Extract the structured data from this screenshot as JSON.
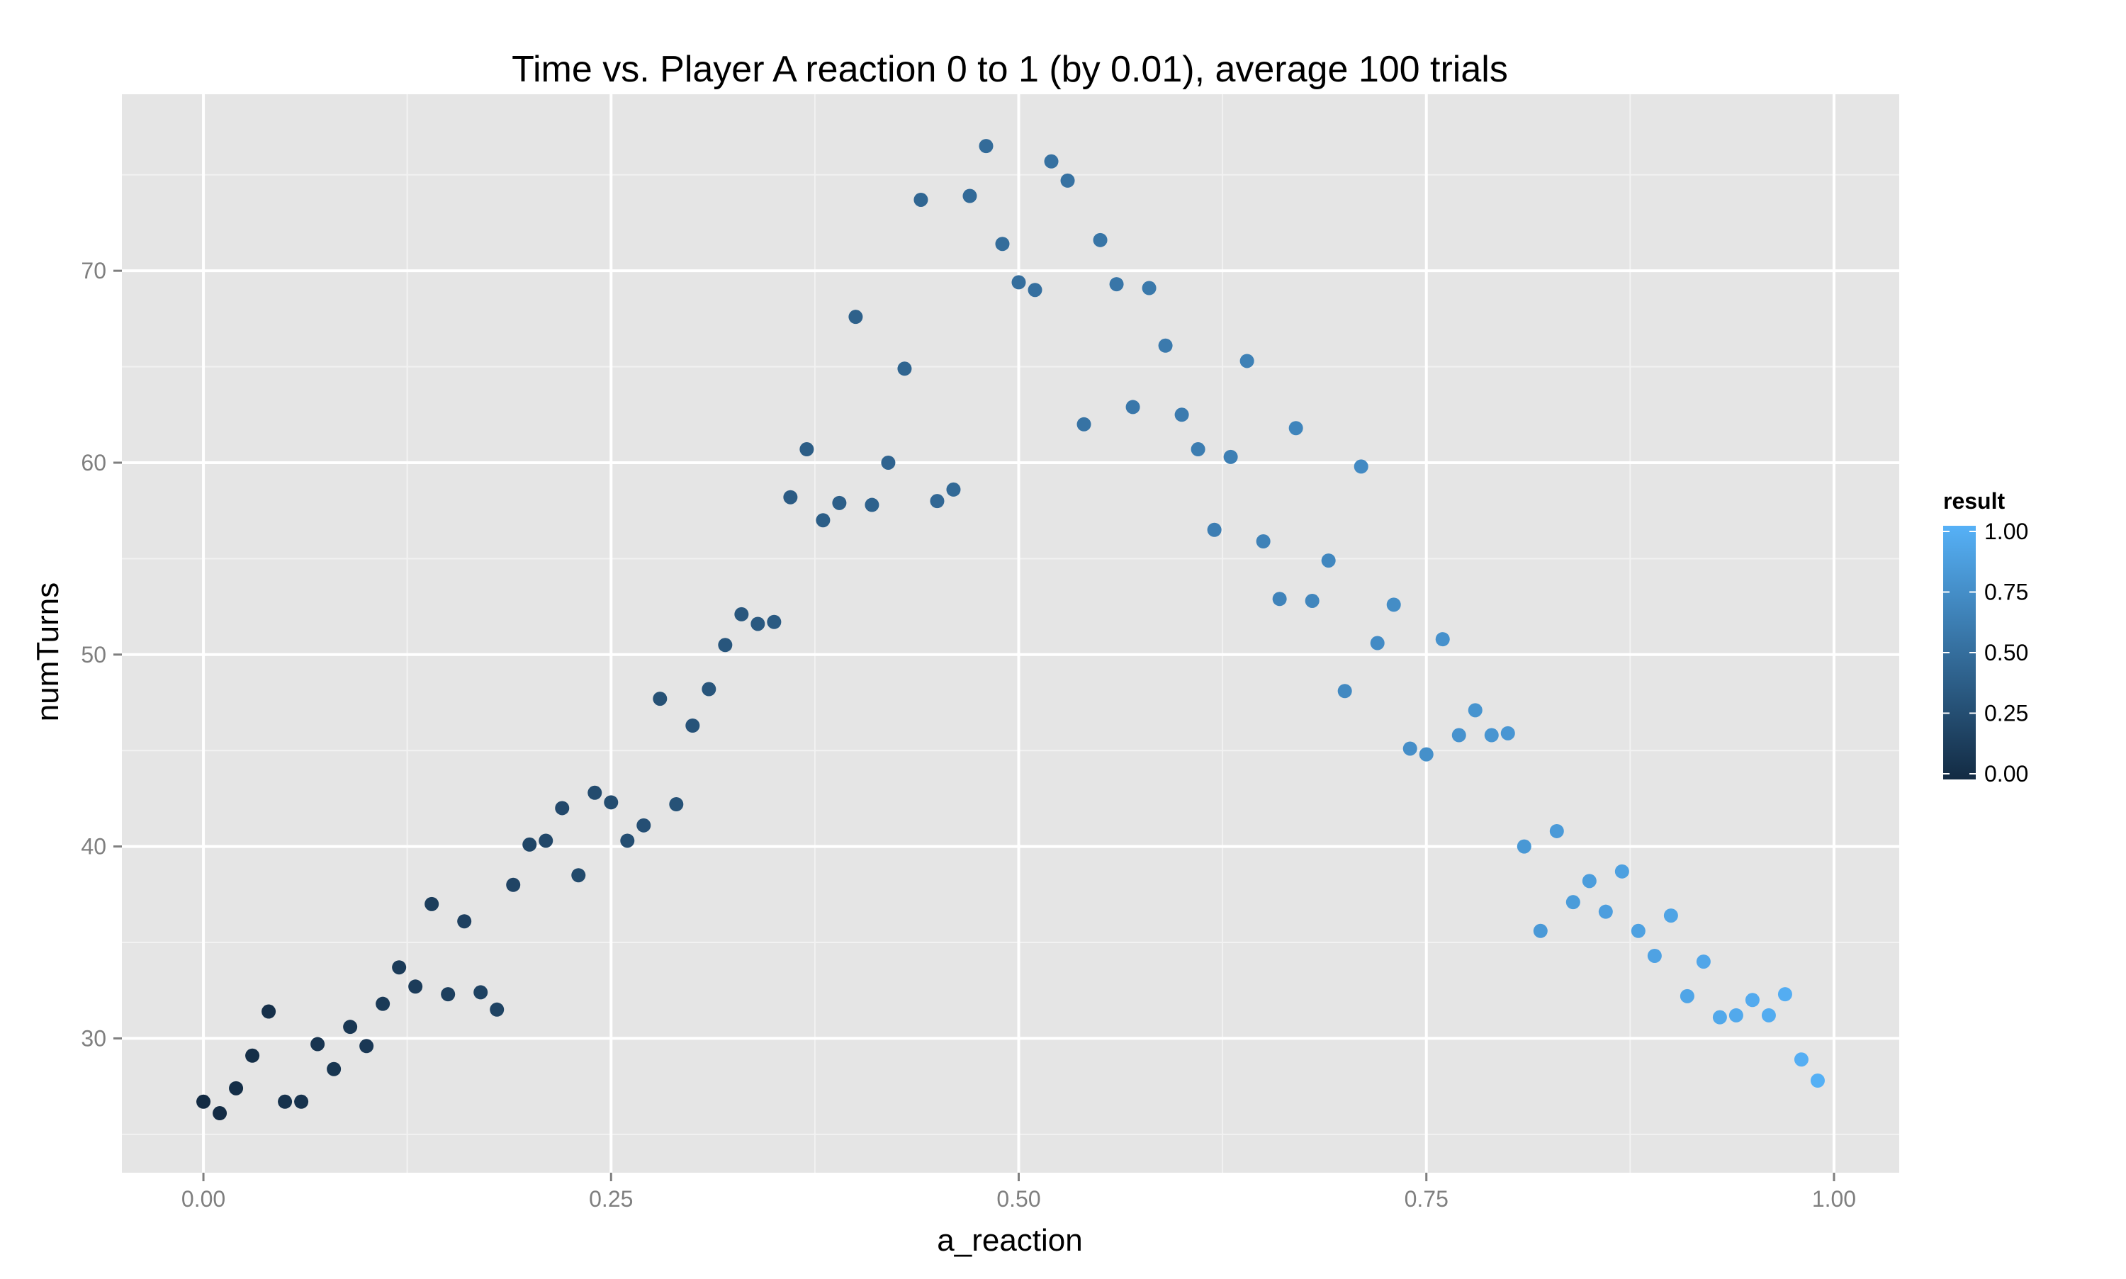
{
  "chart_data": {
    "type": "scatter",
    "title": "Time vs. Player A reaction 0 to 1 (by 0.01), average 100 trials",
    "xlabel": "a_reaction",
    "ylabel": "numTurns",
    "xlim": [
      -0.05,
      1.04
    ],
    "ylim": [
      23.0,
      79.2
    ],
    "x_ticks": [
      0,
      0.25,
      0.5,
      0.75,
      1
    ],
    "x_tick_labels": [
      "0.00",
      "0.25",
      "0.50",
      "0.75",
      "1.00"
    ],
    "y_ticks": [
      30,
      40,
      50,
      60,
      70
    ],
    "y_tick_labels": [
      "30",
      "40",
      "50",
      "60",
      "70"
    ],
    "grid": true,
    "panel_background": "#e5e5e5",
    "grid_major_color": "#ffffff",
    "grid_minor_color": "#f2f2f2",
    "color_low": "#132b43",
    "color_high": "#56b1f7",
    "legend": {
      "title": "result",
      "placement": "right",
      "breaks": [
        0,
        0.25,
        0.5,
        0.75,
        1
      ],
      "labels": [
        "0.00",
        "0.25",
        "0.50",
        "0.75",
        "1.00"
      ]
    },
    "points": {
      "x": [
        0.0,
        0.01,
        0.02,
        0.03,
        0.04,
        0.05,
        0.06,
        0.07,
        0.08,
        0.09,
        0.1,
        0.11,
        0.12,
        0.13,
        0.14,
        0.15,
        0.16,
        0.17,
        0.18,
        0.19,
        0.2,
        0.21,
        0.22,
        0.23,
        0.24,
        0.25,
        0.26,
        0.27,
        0.28,
        0.29,
        0.3,
        0.31,
        0.32,
        0.33,
        0.34,
        0.35,
        0.36,
        0.37,
        0.38,
        0.39,
        0.4,
        0.41,
        0.42,
        0.43,
        0.44,
        0.45,
        0.46,
        0.47,
        0.48,
        0.49,
        0.5,
        0.51,
        0.52,
        0.53,
        0.54,
        0.55,
        0.56,
        0.57,
        0.58,
        0.59,
        0.6,
        0.61,
        0.62,
        0.63,
        0.64,
        0.65,
        0.66,
        0.67,
        0.68,
        0.69,
        0.7,
        0.71,
        0.72,
        0.73,
        0.74,
        0.75,
        0.76,
        0.77,
        0.78,
        0.79,
        0.8,
        0.81,
        0.82,
        0.83,
        0.84,
        0.85,
        0.86,
        0.87,
        0.88,
        0.89,
        0.9,
        0.91,
        0.92,
        0.93,
        0.94,
        0.95,
        0.96,
        0.97,
        0.98,
        0.99
      ],
      "y": [
        26.7,
        26.1,
        27.4,
        29.1,
        31.4,
        26.7,
        26.7,
        29.7,
        28.4,
        30.6,
        29.6,
        31.8,
        33.7,
        32.7,
        37.0,
        32.3,
        36.1,
        32.4,
        31.5,
        38.0,
        40.1,
        40.3,
        42.0,
        38.5,
        42.8,
        42.3,
        40.3,
        41.1,
        47.7,
        42.2,
        46.3,
        48.2,
        50.5,
        52.1,
        51.6,
        51.7,
        58.2,
        60.7,
        57.0,
        57.9,
        67.6,
        57.8,
        60.0,
        64.9,
        73.7,
        58.0,
        58.6,
        73.9,
        76.5,
        71.4,
        69.4,
        69.0,
        75.7,
        74.7,
        62.0,
        71.6,
        69.3,
        62.9,
        69.1,
        66.1,
        62.5,
        60.7,
        56.5,
        60.3,
        65.3,
        55.9,
        52.9,
        61.8,
        52.8,
        54.9,
        48.1,
        59.8,
        50.6,
        52.6,
        45.1,
        44.8,
        50.8,
        45.8,
        47.1,
        45.8,
        45.9,
        40.0,
        35.6,
        40.8,
        37.1,
        38.2,
        36.6,
        38.7,
        35.6,
        34.3,
        36.4,
        32.2,
        34.0,
        31.1,
        31.2,
        32.0,
        31.2,
        32.3,
        28.9,
        27.8
      ],
      "result": [
        0.0,
        0.01,
        0.02,
        0.03,
        0.04,
        0.05,
        0.06,
        0.07,
        0.08,
        0.09,
        0.1,
        0.11,
        0.12,
        0.13,
        0.14,
        0.15,
        0.16,
        0.17,
        0.18,
        0.19,
        0.2,
        0.21,
        0.22,
        0.23,
        0.24,
        0.25,
        0.26,
        0.27,
        0.28,
        0.29,
        0.3,
        0.31,
        0.32,
        0.33,
        0.34,
        0.35,
        0.36,
        0.37,
        0.38,
        0.39,
        0.4,
        0.41,
        0.42,
        0.43,
        0.44,
        0.45,
        0.46,
        0.47,
        0.48,
        0.49,
        0.5,
        0.51,
        0.52,
        0.53,
        0.54,
        0.55,
        0.56,
        0.57,
        0.58,
        0.59,
        0.6,
        0.61,
        0.62,
        0.63,
        0.64,
        0.65,
        0.66,
        0.67,
        0.68,
        0.69,
        0.7,
        0.71,
        0.72,
        0.73,
        0.74,
        0.75,
        0.76,
        0.77,
        0.78,
        0.79,
        0.8,
        0.81,
        0.82,
        0.83,
        0.84,
        0.85,
        0.86,
        0.87,
        0.88,
        0.89,
        0.9,
        0.91,
        0.92,
        0.93,
        0.94,
        0.95,
        0.96,
        0.97,
        0.98,
        0.99
      ]
    }
  }
}
